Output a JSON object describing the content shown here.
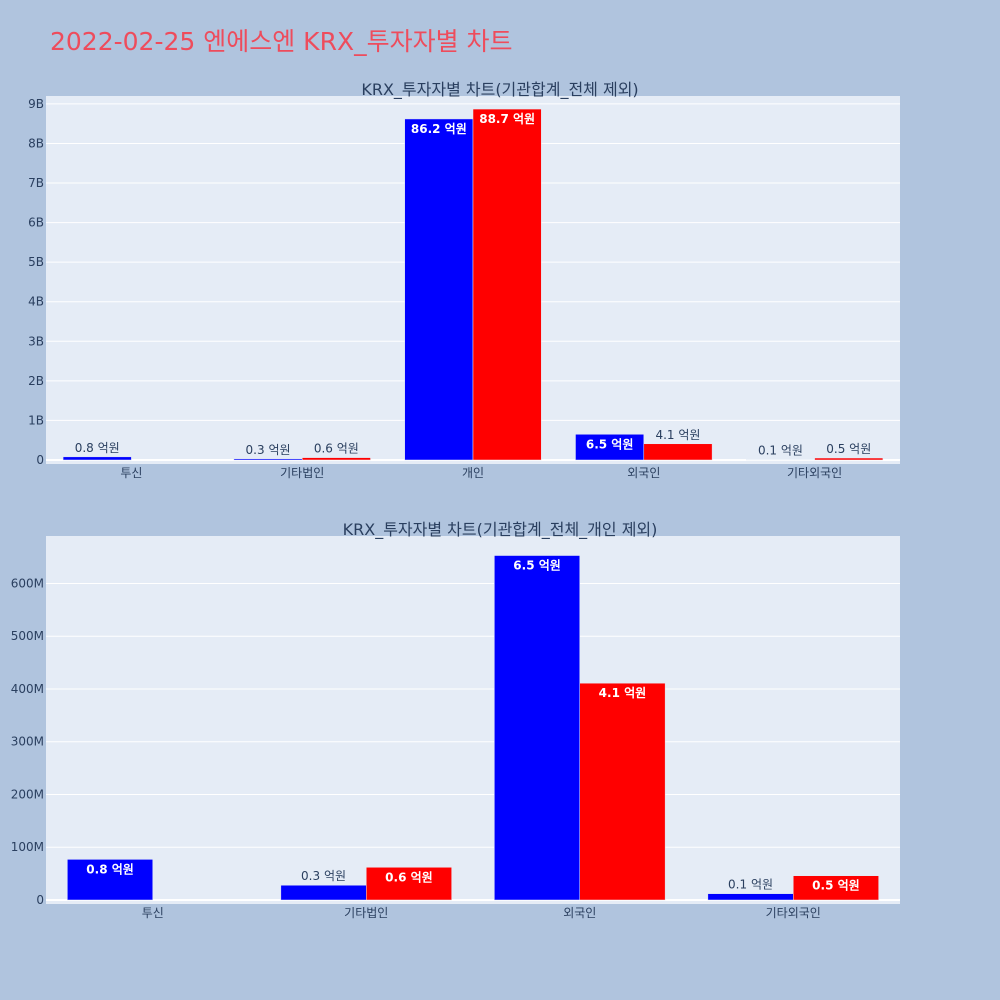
{
  "page_title": "2022-02-25 엔에스엔 KRX_투자자별 차트",
  "colors": {
    "series_a": "#0000ff",
    "series_b": "#ff0000",
    "title": "#ee4c5c"
  },
  "chart_data": [
    {
      "type": "bar",
      "title": "KRX_투자자별 차트(기관합계_전체 제외)",
      "categories": [
        "투신",
        "기타법인",
        "개인",
        "외국인",
        "기타외국인"
      ],
      "ylim": [
        0,
        9200000000
      ],
      "yticks": [
        0,
        1000000000,
        2000000000,
        3000000000,
        4000000000,
        5000000000,
        6000000000,
        7000000000,
        8000000000,
        9000000000
      ],
      "ytick_labels": [
        "0",
        "1B",
        "2B",
        "3B",
        "4B",
        "5B",
        "6B",
        "7B",
        "8B",
        "9B"
      ],
      "grid": true,
      "series": [
        {
          "color": "#0000ff",
          "values": [
            80000000,
            30000000,
            8620000000,
            650000000,
            10000000
          ],
          "labels": [
            "0.8 억원",
            "0.3 억원",
            "86.2 억원",
            "6.5 억원",
            "0.1 억원"
          ]
        },
        {
          "color": "#ff0000",
          "values": [
            0,
            60000000,
            8870000000,
            410000000,
            50000000
          ],
          "labels": [
            "",
            "0.6 억원",
            "88.7 억원",
            "4.1 억원",
            "0.5 억원"
          ]
        }
      ]
    },
    {
      "type": "bar",
      "title": "KRX_투자자별 차트(기관합계_전체_개인 제외)",
      "categories": [
        "투신",
        "기타법인",
        "외국인",
        "기타외국인"
      ],
      "ylim": [
        0,
        690000000
      ],
      "yticks": [
        0,
        100000000,
        200000000,
        300000000,
        400000000,
        500000000,
        600000000
      ],
      "ytick_labels": [
        "0",
        "100M",
        "200M",
        "300M",
        "400M",
        "500M",
        "600M"
      ],
      "grid": true,
      "series": [
        {
          "color": "#0000ff",
          "values": [
            77000000,
            28000000,
            653000000,
            12000000
          ],
          "labels": [
            "0.8 억원",
            "0.3 억원",
            "6.5 억원",
            "0.1 억원"
          ]
        },
        {
          "color": "#ff0000",
          "values": [
            0,
            62000000,
            411000000,
            46000000
          ],
          "labels": [
            "",
            "0.6 억원",
            "4.1 억원",
            "0.5 억원"
          ]
        }
      ]
    }
  ]
}
